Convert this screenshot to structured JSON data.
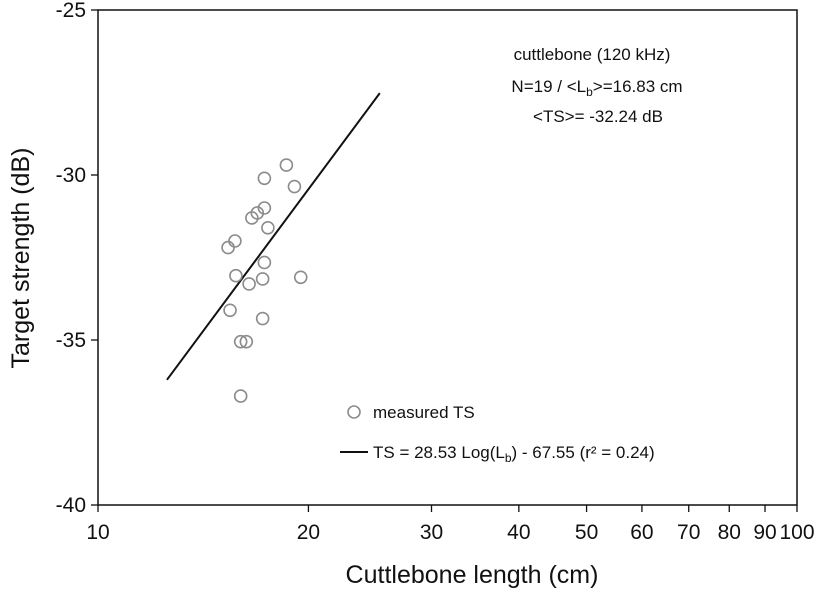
{
  "chart_data": {
    "type": "scatter",
    "x_scale": "log",
    "xlabel": "Cuttlebone length (cm)",
    "ylabel": "Target strength (dB)",
    "xlim": [
      10,
      100
    ],
    "ylim": [
      -40,
      -25
    ],
    "x_ticks": [
      10,
      20,
      30,
      40,
      50,
      60,
      70,
      80,
      90,
      100
    ],
    "x_tick_labels": [
      "10",
      "20",
      "30",
      "40",
      "50",
      "60",
      "70",
      "80",
      "90",
      "100"
    ],
    "y_ticks": [
      -40,
      -35,
      -30,
      -25
    ],
    "y_tick_labels": [
      "-40",
      "-35",
      "-30",
      "-25"
    ],
    "grid": false,
    "annotation": {
      "line1": "cuttlebone (120 kHz)",
      "line2_pre": "N=19 / <L",
      "line2_sub": "b",
      "line2_post": ">=16.83 cm",
      "line3": "<TS>= -32.24 dB"
    },
    "series": [
      {
        "name": "measured TS",
        "marker": "open-circle",
        "color": "#8c8c8c",
        "points": [
          [
            18.6,
            -29.7
          ],
          [
            17.3,
            -30.1
          ],
          [
            19.1,
            -30.35
          ],
          [
            17.3,
            -31.0
          ],
          [
            16.9,
            -31.15
          ],
          [
            16.6,
            -31.3
          ],
          [
            17.5,
            -31.6
          ],
          [
            15.7,
            -32.0
          ],
          [
            15.35,
            -32.2
          ],
          [
            17.3,
            -32.65
          ],
          [
            15.75,
            -33.05
          ],
          [
            17.2,
            -33.15
          ],
          [
            19.5,
            -33.1
          ],
          [
            16.45,
            -33.3
          ],
          [
            15.45,
            -34.1
          ],
          [
            17.2,
            -34.35
          ],
          [
            16.0,
            -35.05
          ],
          [
            16.3,
            -35.05
          ],
          [
            16.0,
            -36.7
          ]
        ]
      },
      {
        "name_pre": "TS = 28.53 Log(L",
        "name_sub": "b",
        "name_post": ") - 67.55 (r² = 0.24)",
        "type": "line",
        "color": "#111111",
        "slope": 28.53,
        "intercept": -67.55,
        "x_range": [
          12.55,
          25.3
        ]
      }
    ],
    "legend_position": "bottom-right"
  }
}
